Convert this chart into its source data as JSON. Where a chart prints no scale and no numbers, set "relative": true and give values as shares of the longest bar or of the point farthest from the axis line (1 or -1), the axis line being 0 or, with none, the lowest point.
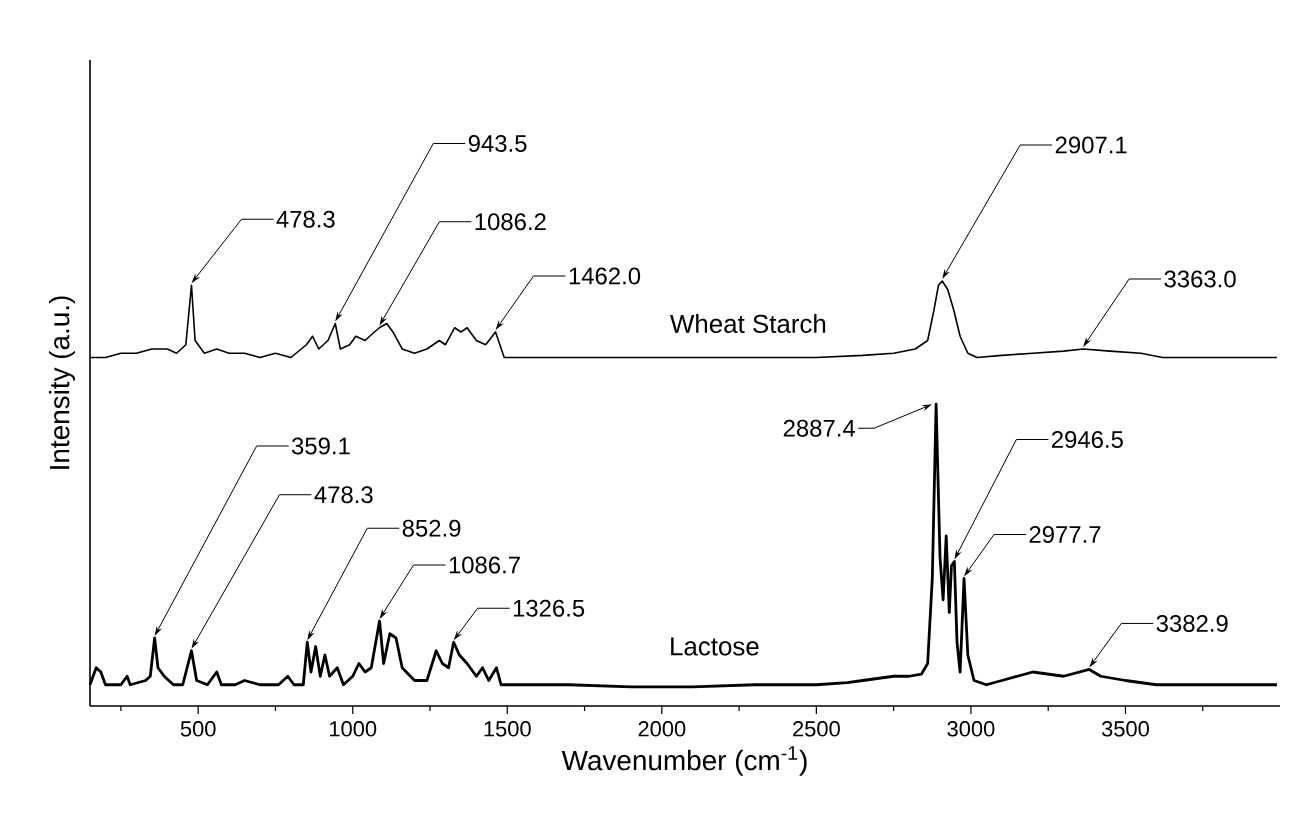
{
  "chart_data": {
    "type": "line",
    "relative": true,
    "xlabel": "Wavenumber (cm$^{-1}$)",
    "ylabel": "Intensity (a.u.)",
    "xlim": [
      150,
      4000
    ],
    "xticks": [
      {
        "value": 250,
        "label": null
      },
      500,
      {
        "value": 750,
        "label": null
      },
      1000,
      {
        "value": 1250,
        "label": null
      },
      1500,
      {
        "value": 1750,
        "label": null
      },
      2000,
      {
        "value": 2250,
        "label": null
      },
      2500,
      {
        "value": 2750,
        "label": null
      },
      3000,
      {
        "value": 3250,
        "label": null
      },
      3500,
      {
        "value": 3750,
        "label": null
      }
    ],
    "series": [
      {
        "name": "Wheat Starch",
        "color": "#000000",
        "x": [
          150,
          200,
          250,
          300,
          350,
          400,
          430,
          460,
          478.3,
          490,
          520,
          560,
          600,
          650,
          700,
          750,
          800,
          850,
          870,
          890,
          920,
          943.5,
          960,
          990,
          1010,
          1040,
          1070,
          1086.2,
          1110,
          1130,
          1160,
          1200,
          1240,
          1280,
          1300,
          1330,
          1350,
          1370,
          1400,
          1430,
          1462,
          1490,
          1550,
          1700,
          1900,
          2100,
          2300,
          2500,
          2650,
          2750,
          2820,
          2860,
          2880,
          2895,
          2907.1,
          2925,
          2945,
          2965,
          2990,
          3020,
          3100,
          3200,
          3300,
          3363,
          3450,
          3550,
          3620,
          3700,
          3850,
          3990
        ],
        "values": [
          0.82,
          0.82,
          0.83,
          0.83,
          0.84,
          0.84,
          0.83,
          0.85,
          0.99,
          0.86,
          0.83,
          0.84,
          0.83,
          0.83,
          0.82,
          0.83,
          0.82,
          0.85,
          0.87,
          0.84,
          0.86,
          0.9,
          0.84,
          0.85,
          0.87,
          0.86,
          0.88,
          0.89,
          0.9,
          0.88,
          0.84,
          0.83,
          0.84,
          0.86,
          0.85,
          0.89,
          0.88,
          0.89,
          0.86,
          0.85,
          0.88,
          0.82,
          0.82,
          0.82,
          0.82,
          0.82,
          0.82,
          0.82,
          0.825,
          0.83,
          0.84,
          0.86,
          0.93,
          0.99,
          1.0,
          0.98,
          0.93,
          0.87,
          0.83,
          0.82,
          0.825,
          0.83,
          0.835,
          0.84,
          0.835,
          0.83,
          0.82,
          0.82,
          0.82,
          0.82
        ]
      },
      {
        "name": "Lactose",
        "color": "#000000",
        "x": [
          150,
          170,
          185,
          200,
          250,
          270,
          280,
          330,
          345,
          359.1,
          370,
          390,
          420,
          450,
          478.3,
          495,
          530,
          560,
          575,
          620,
          650,
          700,
          760,
          790,
          810,
          840,
          852.9,
          865,
          880,
          895,
          910,
          925,
          950,
          970,
          1000,
          1020,
          1040,
          1060,
          1086.7,
          1100,
          1120,
          1140,
          1160,
          1200,
          1240,
          1270,
          1290,
          1310,
          1326.5,
          1345,
          1370,
          1400,
          1420,
          1440,
          1465,
          1480,
          1550,
          1700,
          1900,
          2100,
          2300,
          2500,
          2600,
          2650,
          2700,
          2750,
          2800,
          2840,
          2860,
          2875,
          2887.4,
          2900,
          2910,
          2920,
          2930,
          2937,
          2946.5,
          2955,
          2965,
          2977.7,
          2990,
          3010,
          3050,
          3100,
          3200,
          3300,
          3382.9,
          3420,
          3500,
          3600,
          3800,
          3990
        ],
        "values": [
          0.05,
          0.09,
          0.08,
          0.05,
          0.05,
          0.07,
          0.05,
          0.06,
          0.07,
          0.16,
          0.09,
          0.07,
          0.05,
          0.05,
          0.13,
          0.06,
          0.05,
          0.08,
          0.05,
          0.05,
          0.06,
          0.05,
          0.05,
          0.07,
          0.05,
          0.05,
          0.15,
          0.08,
          0.14,
          0.07,
          0.12,
          0.07,
          0.09,
          0.05,
          0.07,
          0.1,
          0.08,
          0.09,
          0.2,
          0.1,
          0.17,
          0.16,
          0.09,
          0.06,
          0.06,
          0.13,
          0.1,
          0.09,
          0.15,
          0.12,
          0.1,
          0.07,
          0.09,
          0.06,
          0.09,
          0.05,
          0.05,
          0.05,
          0.045,
          0.045,
          0.05,
          0.05,
          0.055,
          0.06,
          0.065,
          0.07,
          0.07,
          0.075,
          0.1,
          0.3,
          0.71,
          0.35,
          0.25,
          0.4,
          0.22,
          0.33,
          0.34,
          0.15,
          0.08,
          0.3,
          0.12,
          0.06,
          0.05,
          0.06,
          0.08,
          0.07,
          0.086,
          0.07,
          0.06,
          0.05,
          0.05,
          0.05
        ]
      }
    ],
    "annotations": [
      {
        "text": "478.3",
        "x": 478.3,
        "y": 0.99
      },
      {
        "text": "943.5",
        "x": 943.5,
        "y": 0.9
      },
      {
        "text": "1086.2",
        "x": 1086.2,
        "y": 0.89
      },
      {
        "text": "1462.0",
        "x": 1462,
        "y": 0.88
      },
      {
        "text": "2907.1",
        "x": 2907.1,
        "y": 1.0
      },
      {
        "text": "3363.0",
        "x": 3363,
        "y": 0.84
      },
      {
        "text": "359.1",
        "x": 359.1,
        "y": 0.16
      },
      {
        "text": "478.3",
        "x": 478.3,
        "y": 0.13
      },
      {
        "text": "852.9",
        "x": 852.9,
        "y": 0.15
      },
      {
        "text": "1086.7",
        "x": 1086.7,
        "y": 0.2
      },
      {
        "text": "1326.5",
        "x": 1326.5,
        "y": 0.15
      },
      {
        "text": "2887.4",
        "x": 2887.4,
        "y": 0.71
      },
      {
        "text": "2946.5",
        "x": 2946.5,
        "y": 0.34
      },
      {
        "text": "2977.7",
        "x": 2977.7,
        "y": 0.3
      },
      {
        "text": "3382.9",
        "x": 3382.9,
        "y": 0.086
      }
    ]
  }
}
